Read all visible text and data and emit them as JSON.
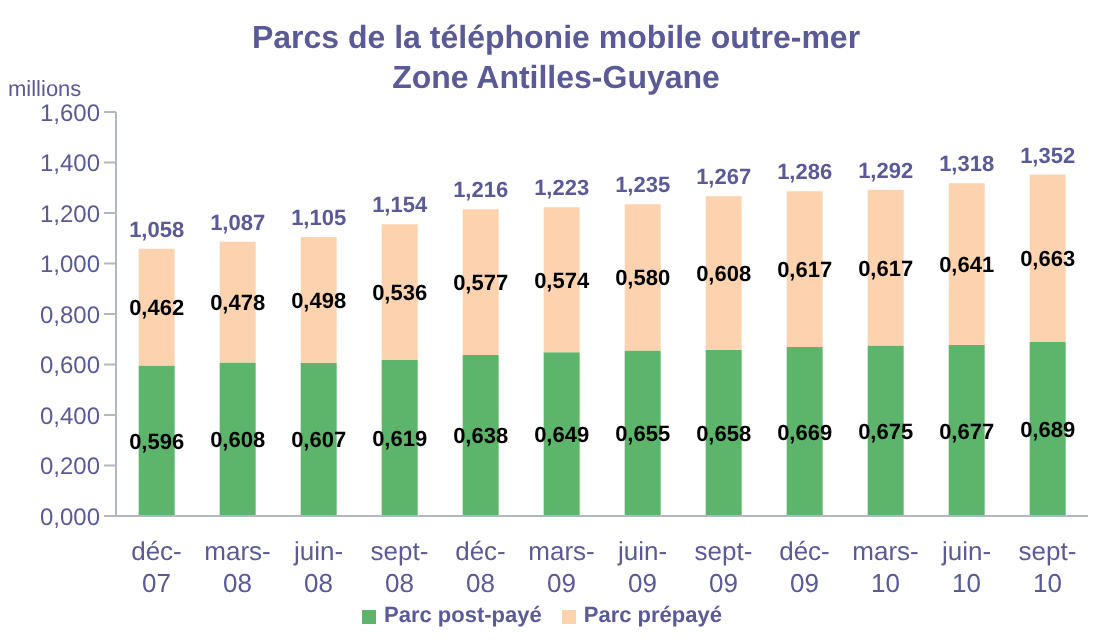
{
  "chart_data": {
    "type": "bar",
    "title": "Parcs de la téléphonie mobile outre-mer",
    "subtitle": "Zone Antilles-Guyane",
    "ylabel": "millions",
    "categories": [
      "déc-07",
      "mars-08",
      "juin-08",
      "sept-08",
      "déc-08",
      "mars-09",
      "juin-09",
      "sept-09",
      "déc-09",
      "mars-10",
      "juin-10",
      "sept-10"
    ],
    "stacked": true,
    "series": [
      {
        "name": "Parc post-payé",
        "color": "#5cb56a",
        "values": [
          0.596,
          0.608,
          0.607,
          0.619,
          0.638,
          0.649,
          0.655,
          0.658,
          0.669,
          0.675,
          0.677,
          0.689
        ],
        "value_labels": [
          "0,596",
          "0,608",
          "0,607",
          "0,619",
          "0,638",
          "0,649",
          "0,655",
          "0,658",
          "0,669",
          "0,675",
          "0,677",
          "0,689"
        ]
      },
      {
        "name": "Parc prépayé",
        "color": "#fcd3ae",
        "values": [
          0.462,
          0.478,
          0.498,
          0.536,
          0.577,
          0.574,
          0.58,
          0.608,
          0.617,
          0.617,
          0.641,
          0.663
        ],
        "value_labels": [
          "0,462",
          "0,478",
          "0,498",
          "0,536",
          "0,577",
          "0,574",
          "0,580",
          "0,608",
          "0,617",
          "0,617",
          "0,641",
          "0,663"
        ]
      }
    ],
    "totals": [
      "1,058",
      "1,087",
      "1,105",
      "1,154",
      "1,216",
      "1,223",
      "1,235",
      "1,267",
      "1,286",
      "1,292",
      "1,318",
      "1,352"
    ],
    "ylim": [
      0,
      1.6
    ],
    "yticks": [
      {
        "value": 0,
        "label": "0,000"
      },
      {
        "value": 0.2,
        "label": "0,200"
      },
      {
        "value": 0.4,
        "label": "0,400"
      },
      {
        "value": 0.6,
        "label": "0,600"
      },
      {
        "value": 0.8,
        "label": "0,800"
      },
      {
        "value": 1.0,
        "label": "1,000"
      },
      {
        "value": 1.2,
        "label": "1,200"
      },
      {
        "value": 1.4,
        "label": "1,400"
      },
      {
        "value": 1.6,
        "label": "1,600"
      }
    ],
    "grid": false,
    "legend": "bottom"
  }
}
